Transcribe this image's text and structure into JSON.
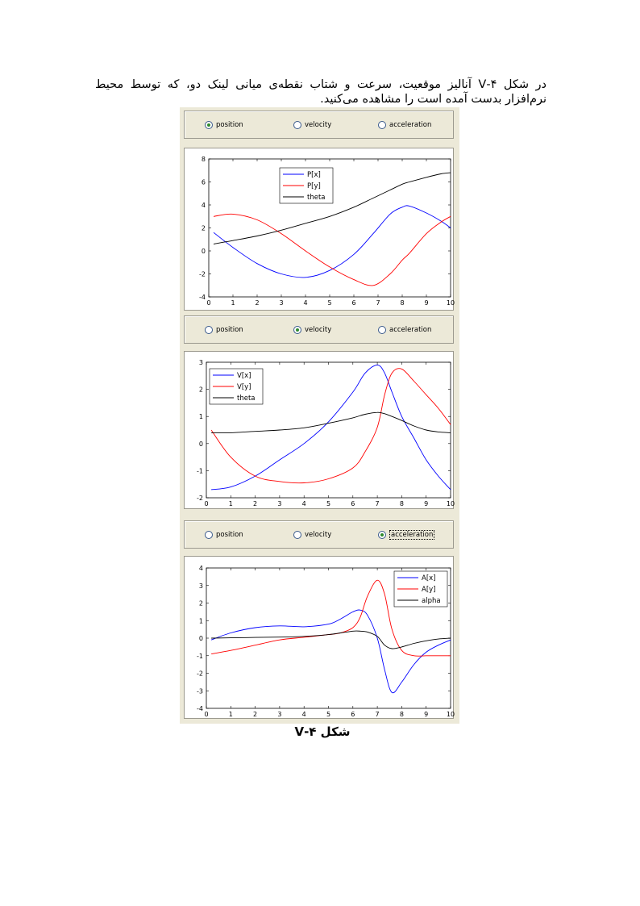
{
  "paragraph": "در شکل ۴-V آنالیز موقعیت، سرعت و شتاب نقطه‌ی میانی لینک دو، که توسط محیط نرم‌افزار بدست آمده است را مشاهده می‌کنید.",
  "caption": "شکل ۴-V",
  "radio_options": [
    "position",
    "velocity",
    "acceleration"
  ],
  "panels": [
    {
      "selected": "position"
    },
    {
      "selected": "velocity"
    },
    {
      "selected": "acceleration"
    }
  ],
  "colors": {
    "x_series": "#0000ff",
    "y_series": "#ff0000",
    "angle_series": "#000000",
    "radio_dot": "#2f8a2f"
  },
  "chart_data": [
    {
      "type": "line",
      "xlim": [
        0,
        10
      ],
      "ylim": [
        -4,
        8
      ],
      "xticks": [
        "0",
        "1",
        "2",
        "3",
        "4",
        "5",
        "6",
        "7",
        "8",
        "9",
        "10"
      ],
      "yticks": [
        "-4",
        "-2",
        "0",
        "2",
        "4",
        "6",
        "8"
      ],
      "legend_position": "top-center",
      "x": [
        0.2,
        1,
        2,
        3,
        4,
        5,
        6,
        6.8,
        7.5,
        8,
        8.3,
        9,
        9.6,
        10
      ],
      "series": [
        {
          "name": "P[x]",
          "color": "#0000ff",
          "values": [
            1.6,
            0.3,
            -1.1,
            -2.0,
            -2.3,
            -1.7,
            -0.3,
            1.5,
            3.2,
            3.8,
            3.9,
            3.3,
            2.6,
            2.0
          ]
        },
        {
          "name": "P[y]",
          "color": "#ff0000",
          "values": [
            3.0,
            3.2,
            2.7,
            1.5,
            0.0,
            -1.4,
            -2.5,
            -3.0,
            -2.0,
            -0.8,
            -0.2,
            1.5,
            2.5,
            3.0
          ]
        },
        {
          "name": "theta",
          "color": "#000000",
          "values": [
            0.6,
            0.9,
            1.3,
            1.8,
            2.4,
            3.0,
            3.8,
            4.6,
            5.3,
            5.8,
            6.0,
            6.4,
            6.7,
            6.8
          ]
        }
      ]
    },
    {
      "type": "line",
      "xlim": [
        0,
        10
      ],
      "ylim": [
        -2,
        3
      ],
      "xticks": [
        "0",
        "1",
        "2",
        "3",
        "4",
        "5",
        "6",
        "7",
        "8",
        "9",
        "10"
      ],
      "yticks": [
        "-2",
        "-1",
        "0",
        "1",
        "2",
        "3"
      ],
      "legend_position": "top-left",
      "x": [
        0.2,
        1,
        2,
        3,
        4,
        5,
        6,
        6.5,
        7,
        7.3,
        7.6,
        8,
        8.5,
        9,
        9.5,
        10
      ],
      "series": [
        {
          "name": "V[x]",
          "color": "#0000ff",
          "values": [
            -1.7,
            -1.6,
            -1.2,
            -0.6,
            0.0,
            0.8,
            1.9,
            2.6,
            2.9,
            2.6,
            1.9,
            1.0,
            0.2,
            -0.6,
            -1.2,
            -1.7
          ]
        },
        {
          "name": "V[y]",
          "color": "#ff0000",
          "values": [
            0.5,
            -0.5,
            -1.2,
            -1.4,
            -1.45,
            -1.3,
            -0.9,
            -0.3,
            0.6,
            1.8,
            2.6,
            2.75,
            2.3,
            1.8,
            1.3,
            0.7
          ]
        },
        {
          "name": "theta",
          "color": "#000000",
          "values": [
            0.4,
            0.4,
            0.45,
            0.5,
            0.58,
            0.75,
            0.95,
            1.08,
            1.15,
            1.1,
            1.0,
            0.85,
            0.65,
            0.5,
            0.43,
            0.4
          ]
        }
      ]
    },
    {
      "type": "line",
      "xlim": [
        0,
        10
      ],
      "ylim": [
        -4,
        4
      ],
      "xticks": [
        "0",
        "1",
        "2",
        "3",
        "4",
        "5",
        "6",
        "7",
        "8",
        "9",
        "10"
      ],
      "yticks": [
        "-4",
        "-3",
        "-2",
        "-1",
        "0",
        "1",
        "2",
        "3",
        "4"
      ],
      "legend_position": "top-right",
      "x": [
        0.2,
        1,
        2,
        3,
        4,
        5,
        5.5,
        6,
        6.3,
        6.6,
        7,
        7.3,
        7.6,
        8,
        8.5,
        9,
        9.5,
        10
      ],
      "series": [
        {
          "name": "A[x]",
          "color": "#0000ff",
          "values": [
            -0.1,
            0.3,
            0.6,
            0.7,
            0.65,
            0.8,
            1.1,
            1.5,
            1.6,
            1.3,
            0.0,
            -1.8,
            -3.1,
            -2.5,
            -1.5,
            -0.8,
            -0.4,
            -0.1
          ]
        },
        {
          "name": "A[y]",
          "color": "#ff0000",
          "values": [
            -0.9,
            -0.7,
            -0.4,
            -0.1,
            0.05,
            0.2,
            0.3,
            0.6,
            1.2,
            2.4,
            3.3,
            2.5,
            0.5,
            -0.7,
            -1.0,
            -1.0,
            -1.0,
            -1.0
          ]
        },
        {
          "name": "alpha",
          "color": "#000000",
          "values": [
            0.0,
            0.02,
            0.04,
            0.06,
            0.1,
            0.2,
            0.3,
            0.4,
            0.4,
            0.35,
            0.1,
            -0.4,
            -0.6,
            -0.5,
            -0.3,
            -0.15,
            -0.05,
            0.0
          ]
        }
      ]
    }
  ]
}
